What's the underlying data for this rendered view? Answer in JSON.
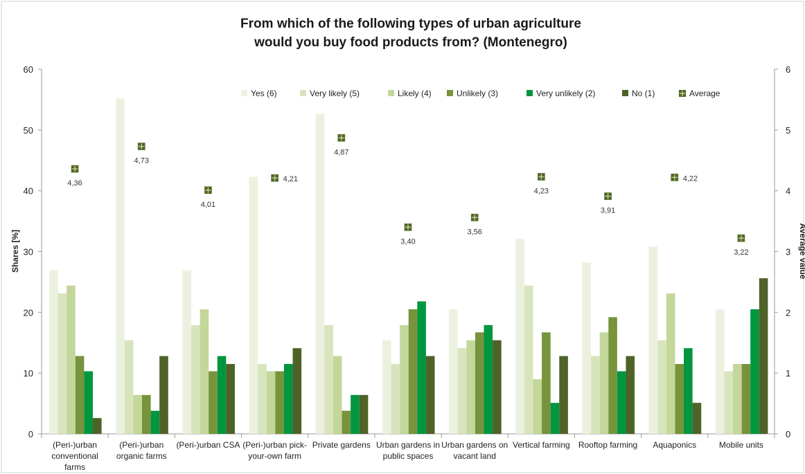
{
  "chart_data": {
    "type": "bar",
    "title_lines": [
      "From which of the following types of urban agriculture",
      "would you buy food products from? (Montenegro)"
    ],
    "ylabel": "Shares [%]",
    "y2label": "Average value",
    "ylim": [
      0,
      60
    ],
    "y2lim": [
      0,
      6
    ],
    "yticks": [
      "0",
      "10",
      "20",
      "30",
      "40",
      "50",
      "60"
    ],
    "y2ticks": [
      "0",
      "1",
      "2",
      "3",
      "4",
      "5",
      "6"
    ],
    "grid": false,
    "legend_position": "top",
    "categories": [
      [
        "(Peri-)urban",
        "conventional",
        "farms"
      ],
      [
        "(Peri-)urban",
        "organic farms"
      ],
      [
        "(Peri-)urban CSA"
      ],
      [
        "(Peri-)urban pick-",
        "your-own farm"
      ],
      [
        "Private gardens"
      ],
      [
        "Urban gardens in",
        "public spaces"
      ],
      [
        "Urban  gardens on",
        "vacant land"
      ],
      [
        "Vertical farming"
      ],
      [
        "Rooftop farming"
      ],
      [
        "Aquaponics"
      ],
      [
        "Mobile units"
      ]
    ],
    "series": [
      {
        "name": "Yes (6)",
        "color": "#ebf1de",
        "values": [
          26.9,
          55.2,
          26.9,
          42.3,
          52.6,
          15.4,
          20.5,
          32.1,
          28.2,
          30.8,
          20.5
        ]
      },
      {
        "name": "Very likely (5)",
        "color": "#d8e4bc",
        "values": [
          23.1,
          15.4,
          17.9,
          11.5,
          17.9,
          11.5,
          14.1,
          24.4,
          12.8,
          15.4,
          10.3
        ]
      },
      {
        "name": "Likely (4)",
        "color": "#c4d79b",
        "values": [
          24.4,
          6.4,
          20.5,
          10.3,
          12.8,
          17.9,
          15.4,
          9.0,
          16.7,
          23.1,
          11.5
        ]
      },
      {
        "name": "Unlikely (3)",
        "color": "#77933c",
        "values": [
          12.8,
          6.4,
          10.3,
          10.3,
          3.8,
          20.5,
          16.7,
          16.7,
          19.2,
          11.5,
          11.5
        ]
      },
      {
        "name": "Very unlikely (2)",
        "color": "#00963f",
        "values": [
          10.3,
          3.8,
          12.8,
          11.5,
          6.4,
          21.8,
          17.9,
          5.1,
          10.3,
          14.1,
          20.5
        ]
      },
      {
        "name": "No (1)",
        "color": "#4f6228",
        "values": [
          2.6,
          12.8,
          11.5,
          14.1,
          6.4,
          12.8,
          15.4,
          12.8,
          12.8,
          5.1,
          25.6
        ]
      }
    ],
    "average": {
      "name": "Average",
      "color": "#4f6228",
      "values": [
        4.36,
        4.73,
        4.01,
        4.21,
        4.87,
        3.4,
        3.56,
        4.23,
        3.91,
        4.22,
        3.22
      ],
      "labels": [
        "4,36",
        "4,73",
        "4,01",
        "4,21",
        "4,87",
        "3,40",
        "3,56",
        "4,23",
        "3,91",
        "4,22",
        "3,22"
      ],
      "label_side": [
        "below",
        "below",
        "below",
        "right",
        "below",
        "below",
        "below",
        "below",
        "below",
        "right",
        "below"
      ]
    }
  }
}
